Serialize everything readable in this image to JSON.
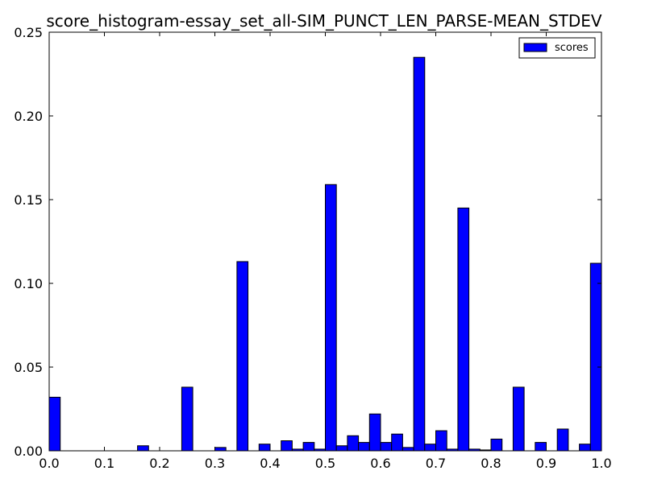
{
  "chart_data": {
    "type": "bar",
    "title": "score_histogram-essay_set_all-SIM_PUNCT_LEN_PARSE-MEAN_STDEV",
    "xlabel": "",
    "ylabel": "",
    "xlim": [
      0.0,
      1.0
    ],
    "ylim": [
      0.0,
      0.25
    ],
    "bin_width": 0.02,
    "grid": false,
    "legend": "top-right",
    "bar_color": "#0000ff",
    "x_ticks": [
      "0.0",
      "0.1",
      "0.2",
      "0.3",
      "0.4",
      "0.5",
      "0.6",
      "0.7",
      "0.8",
      "0.9",
      "1.0"
    ],
    "y_ticks": [
      "0.00",
      "0.05",
      "0.10",
      "0.15",
      "0.20",
      "0.25"
    ],
    "series": [
      {
        "name": "scores",
        "bins": [
          {
            "x": 0.0,
            "y": 0.032
          },
          {
            "x": 0.16,
            "y": 0.003
          },
          {
            "x": 0.24,
            "y": 0.038
          },
          {
            "x": 0.3,
            "y": 0.002
          },
          {
            "x": 0.34,
            "y": 0.113
          },
          {
            "x": 0.38,
            "y": 0.004
          },
          {
            "x": 0.42,
            "y": 0.006
          },
          {
            "x": 0.44,
            "y": 0.001
          },
          {
            "x": 0.46,
            "y": 0.005
          },
          {
            "x": 0.48,
            "y": 0.001
          },
          {
            "x": 0.5,
            "y": 0.159
          },
          {
            "x": 0.52,
            "y": 0.003
          },
          {
            "x": 0.54,
            "y": 0.009
          },
          {
            "x": 0.56,
            "y": 0.005
          },
          {
            "x": 0.58,
            "y": 0.022
          },
          {
            "x": 0.6,
            "y": 0.005
          },
          {
            "x": 0.62,
            "y": 0.01
          },
          {
            "x": 0.64,
            "y": 0.002
          },
          {
            "x": 0.66,
            "y": 0.235
          },
          {
            "x": 0.68,
            "y": 0.004
          },
          {
            "x": 0.7,
            "y": 0.012
          },
          {
            "x": 0.72,
            "y": 0.001
          },
          {
            "x": 0.74,
            "y": 0.145
          },
          {
            "x": 0.76,
            "y": 0.001
          },
          {
            "x": 0.78,
            "y": 0.0005
          },
          {
            "x": 0.8,
            "y": 0.007
          },
          {
            "x": 0.84,
            "y": 0.038
          },
          {
            "x": 0.88,
            "y": 0.005
          },
          {
            "x": 0.92,
            "y": 0.013
          },
          {
            "x": 0.96,
            "y": 0.004
          },
          {
            "x": 0.98,
            "y": 0.112
          }
        ]
      }
    ]
  }
}
